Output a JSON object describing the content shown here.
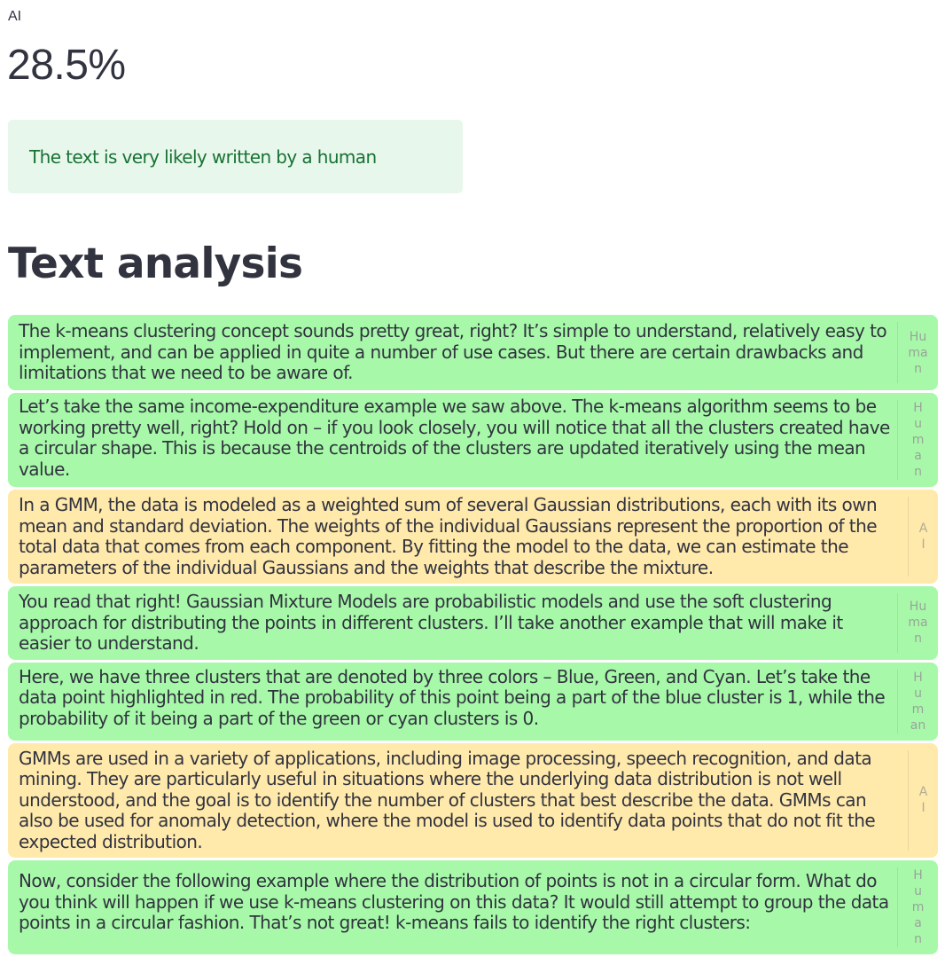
{
  "metric": {
    "label": "AI",
    "value": "28.5%"
  },
  "alert": {
    "text": "The text is very likely written by a human",
    "color": "#177233",
    "background": "#e8f7ec"
  },
  "section": {
    "title": "Text analysis"
  },
  "colors": {
    "human": "#a7f9a9",
    "ai": "#ffe9ab"
  },
  "segments": [
    {
      "type": "human",
      "tag": "Human",
      "text": "The k-means clustering concept sounds pretty great, right? It’s simple to understand, relatively easy to implement, and can be applied in quite a number of use cases. But there are certain drawbacks and limitations that we need to be aware of."
    },
    {
      "type": "human",
      "tag": "Human",
      "text": "Let’s take the same income-expenditure example we saw above. The k-means algorithm seems to be working pretty well, right? Hold on – if you look closely, you will notice that all the clusters created have a circular shape. This is because the centroids of the clusters are updated iteratively using the mean value."
    },
    {
      "type": "ai",
      "tag": "AI",
      "text": "In a GMM, the data is modeled as a weighted sum of several Gaussian distributions, each with its own mean and standard deviation. The weights of the individual Gaussians represent the proportion of the total data that comes from each component. By fitting the model to the data, we can estimate the parameters of the individual Gaussians and the weights that describe the mixture."
    },
    {
      "type": "human",
      "tag": "Human",
      "text": "You read that right! Gaussian Mixture Models are probabilistic models and use the soft clustering approach for distributing the points in different clusters. I’ll take another example that will make it easier to understand."
    },
    {
      "type": "human",
      "tag": "Human",
      "text": "Here, we have three clusters that are denoted by three colors – Blue, Green, and Cyan. Let’s take the data point highlighted in red. The probability of this point being a part of the blue cluster is 1, while the probability of it being a part of the green or cyan clusters is 0."
    },
    {
      "type": "ai",
      "tag": "AI",
      "text": "GMMs are used in a variety of applications, including image processing, speech recognition, and data mining. They are particularly useful in situations where the underlying data distribution is not well understood, and the goal is to identify the number of clusters that best describe the data. GMMs can also be used for anomaly detection, where the model is used to identify data points that do not fit the expected distribution."
    },
    {
      "type": "human",
      "tag": "Human",
      "text": "Now, consider the following example where the distribution of points is not in a circular form. What do you think will happen if we use k-means clustering on this data? It would still attempt to group the data points in a circular fashion. That’s not great! k-means fails to identify the right clusters:"
    }
  ]
}
